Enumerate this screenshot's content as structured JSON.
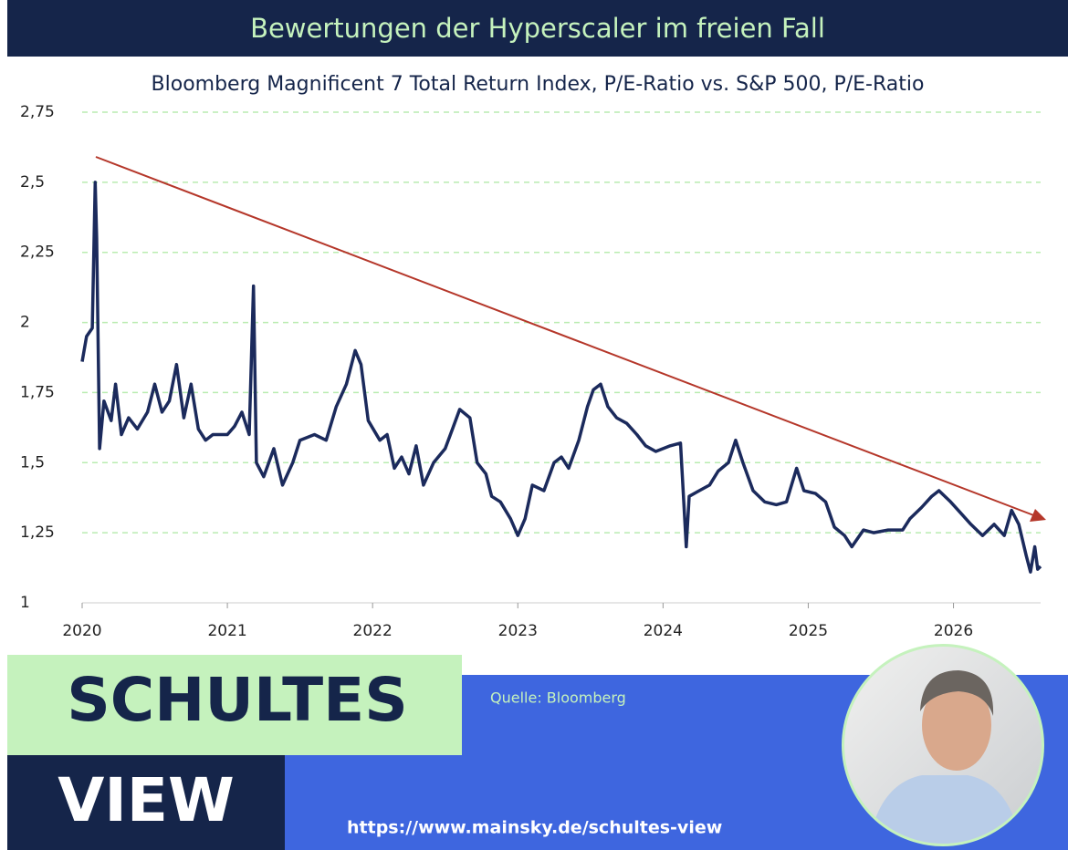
{
  "chart_data": {
    "type": "line",
    "title": "Bewertungen der Hyperscaler im freien Fall",
    "subtitle": "Bloomberg Magnificent 7 Total Return Index, P/E-Ratio vs. S&P 500, P/E-Ratio",
    "color": "#1b2a5c",
    "x": [
      2020.0,
      2020.03,
      2020.07,
      2020.09,
      2020.1,
      2020.12,
      2020.15,
      2020.2,
      2020.23,
      2020.27,
      2020.32,
      2020.38,
      2020.45,
      2020.5,
      2020.55,
      2020.6,
      2020.65,
      2020.7,
      2020.75,
      2020.8,
      2020.85,
      2020.9,
      2021.0,
      2021.05,
      2021.1,
      2021.15,
      2021.18,
      2021.2,
      2021.25,
      2021.32,
      2021.38,
      2021.45,
      2021.5,
      2021.6,
      2021.68,
      2021.75,
      2021.82,
      2021.88,
      2021.92,
      2021.97,
      2022.05,
      2022.1,
      2022.15,
      2022.2,
      2022.25,
      2022.3,
      2022.35,
      2022.42,
      2022.5,
      2022.55,
      2022.6,
      2022.67,
      2022.72,
      2022.78,
      2022.82,
      2022.88,
      2022.95,
      2023.0,
      2023.05,
      2023.1,
      2023.18,
      2023.25,
      2023.3,
      2023.35,
      2023.42,
      2023.48,
      2023.52,
      2023.57,
      2023.62,
      2023.68,
      2023.75,
      2023.82,
      2023.88,
      2023.95,
      2024.05,
      2024.12,
      2024.16,
      2024.18,
      2024.25,
      2024.32,
      2024.38,
      2024.45,
      2024.5,
      2024.55,
      2024.62,
      2024.7,
      2024.78,
      2024.85,
      2024.92,
      2024.97,
      2025.05,
      2025.12,
      2025.18,
      2025.25,
      2025.3,
      2025.38,
      2025.45,
      2025.55,
      2025.65,
      2025.7,
      2025.78,
      2025.85,
      2025.9,
      2025.98,
      2026.05,
      2026.12,
      2026.2,
      2026.28,
      2026.35,
      2026.4,
      2026.45,
      2026.5,
      2026.53,
      2026.56,
      2026.58,
      2026.6
    ],
    "values": [
      1.86,
      1.95,
      1.98,
      2.5,
      2.3,
      1.55,
      1.72,
      1.65,
      1.78,
      1.6,
      1.66,
      1.62,
      1.68,
      1.78,
      1.68,
      1.72,
      1.85,
      1.66,
      1.78,
      1.62,
      1.58,
      1.6,
      1.6,
      1.63,
      1.68,
      1.6,
      2.13,
      1.5,
      1.45,
      1.55,
      1.42,
      1.5,
      1.58,
      1.6,
      1.58,
      1.7,
      1.78,
      1.9,
      1.85,
      1.65,
      1.58,
      1.6,
      1.48,
      1.52,
      1.46,
      1.56,
      1.42,
      1.5,
      1.55,
      1.62,
      1.69,
      1.66,
      1.5,
      1.46,
      1.38,
      1.36,
      1.3,
      1.24,
      1.3,
      1.42,
      1.4,
      1.5,
      1.52,
      1.48,
      1.58,
      1.7,
      1.76,
      1.78,
      1.7,
      1.66,
      1.64,
      1.6,
      1.56,
      1.54,
      1.56,
      1.57,
      1.2,
      1.38,
      1.4,
      1.42,
      1.47,
      1.5,
      1.58,
      1.5,
      1.4,
      1.36,
      1.35,
      1.36,
      1.48,
      1.4,
      1.39,
      1.36,
      1.27,
      1.24,
      1.2,
      1.26,
      1.25,
      1.26,
      1.26,
      1.3,
      1.34,
      1.38,
      1.4,
      1.36,
      1.32,
      1.28,
      1.24,
      1.28,
      1.24,
      1.33,
      1.28,
      1.17,
      1.11,
      1.2,
      1.12,
      1.13
    ],
    "xlim": [
      2020,
      2026.6
    ],
    "xticks": [
      2020,
      2021,
      2022,
      2023,
      2024,
      2025,
      2026
    ],
    "ylim": [
      1,
      2.75
    ],
    "yticks": [
      1,
      {
        "value": 1.25,
        "label": "1,25"
      },
      {
        "value": 1.5,
        "label": "1,5"
      },
      {
        "value": 1.75,
        "label": "1,75"
      },
      2,
      {
        "value": 2.25,
        "label": "2,25"
      },
      {
        "value": 2.5,
        "label": "2,5"
      },
      {
        "value": 2.75,
        "label": "2,75"
      }
    ],
    "grid": true
  },
  "footer": {
    "brand_top": "SCHULTES",
    "brand_bottom": "VIEW",
    "source": "Quelle: Bloomberg",
    "url": "https://www.mainsky.de/schultes-view"
  }
}
